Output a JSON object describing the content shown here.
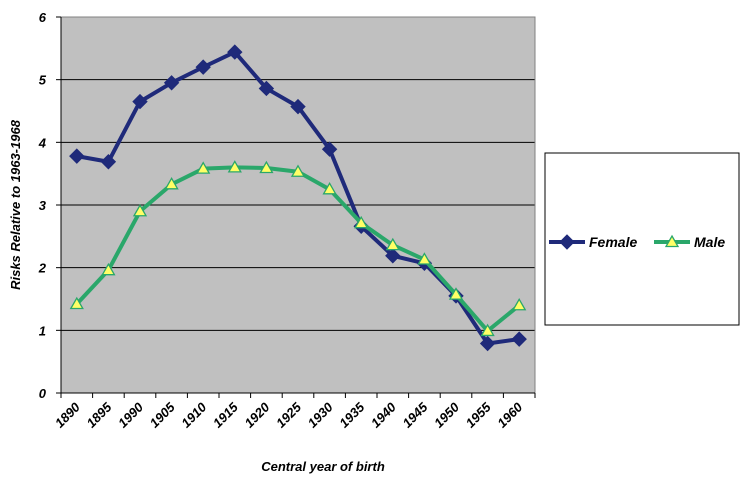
{
  "chart_data": {
    "type": "line",
    "xlabel": "Central year of birth",
    "ylabel": "Risks Relative to 1963-1968",
    "categories": [
      "1890",
      "1895",
      "1990",
      "1905",
      "1910",
      "1915",
      "1920",
      "1925",
      "1930",
      "1935",
      "1940",
      "1945",
      "1950",
      "1955",
      "1960"
    ],
    "yticks": [
      "0",
      "1",
      "2",
      "3",
      "4",
      "5",
      "6"
    ],
    "ylim": [
      0,
      6
    ],
    "grid": true,
    "legend_position": "right",
    "series": [
      {
        "name": "Female",
        "color": "#1f2a7a",
        "marker": "diamond",
        "values": [
          3.78,
          3.69,
          4.65,
          4.95,
          5.2,
          5.44,
          4.86,
          4.57,
          3.89,
          2.66,
          2.19,
          2.07,
          1.55,
          0.79,
          0.86
        ]
      },
      {
        "name": "Male",
        "color": "#2aa76a",
        "marker": "triangle",
        "marker_fill": "#ffff66",
        "values": [
          1.42,
          1.96,
          2.9,
          3.33,
          3.58,
          3.6,
          3.59,
          3.53,
          3.25,
          2.71,
          2.36,
          2.13,
          1.57,
          0.99,
          1.4
        ]
      }
    ]
  }
}
